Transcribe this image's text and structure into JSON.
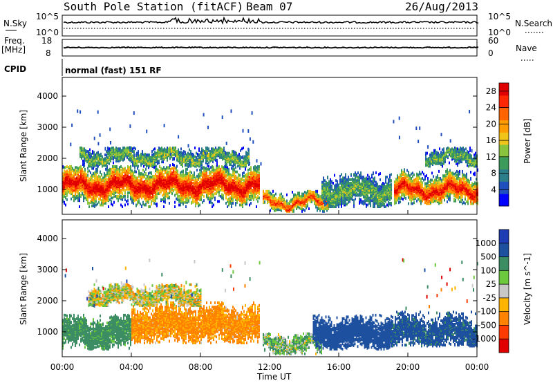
{
  "header": {
    "station": "South Pole Station (fitACF)",
    "beam": "Beam 07",
    "date": "26/Aug/2013"
  },
  "top_panels": {
    "nsky_label": "N.Sky",
    "nsearch_label": "N.Search",
    "noise_ticks": [
      "10^5",
      "10^0"
    ],
    "freq_label": "Freq.",
    "freq_unit": "[MHz]",
    "freq_ticks": [
      "18",
      "8"
    ],
    "nave_label": "Nave",
    "nave_ticks": [
      "60",
      "0"
    ],
    "cpid_label": "CPID",
    "cpid_value": "normal (fast) 151 RF"
  },
  "colors": {
    "power": [
      "#0000ff",
      "#1f4fbf",
      "#2c7d8a",
      "#3c9a5a",
      "#8ac43c",
      "#f0c419",
      "#ff9a00",
      "#ff6400",
      "#ff2800",
      "#e00000"
    ],
    "velocity": [
      "#e00000",
      "#ff3c00",
      "#ff8200",
      "#ffb400",
      "#c8c8c8",
      "#6cc83c",
      "#3c8c64",
      "#1e50a0",
      "#1e3cb4"
    ]
  },
  "chart_data": [
    {
      "type": "heatmap",
      "name": "power",
      "ylabel": "Slant Range [km]",
      "xlabel": "Time UT",
      "x_ticks": [
        "00:00",
        "04:00",
        "08:00",
        "12:00",
        "16:00",
        "20:00",
        "00:00"
      ],
      "x_hours": [
        0,
        4,
        8,
        12,
        16,
        20,
        24
      ],
      "ylim": [
        200,
        4600
      ],
      "y_ticks": [
        1000,
        2000,
        3000,
        4000
      ],
      "colorbar": {
        "label": "Power [dB]",
        "ticks": [
          "4",
          "8",
          "12",
          "16",
          "20",
          "24",
          "28"
        ],
        "range": [
          0,
          30
        ]
      },
      "bands": [
        {
          "t0": 0.0,
          "t1": 11.4,
          "r0": 400,
          "r1": 1700,
          "center": 1100,
          "strength": 0.9
        },
        {
          "t0": 1.0,
          "t1": 10.8,
          "r0": 1700,
          "r1": 2300,
          "center": 2000,
          "strength": 0.35
        },
        {
          "t0": 11.6,
          "t1": 15.4,
          "r0": 250,
          "r1": 900,
          "center": 550,
          "strength": 0.75
        },
        {
          "t0": 15.0,
          "t1": 19.0,
          "r0": 400,
          "r1": 1500,
          "center": 900,
          "strength": 0.3
        },
        {
          "t0": 19.2,
          "t1": 24.0,
          "r0": 500,
          "r1": 1600,
          "center": 950,
          "strength": 0.85
        },
        {
          "t0": 21.0,
          "t1": 24.0,
          "r0": 1700,
          "r1": 2300,
          "center": 2000,
          "strength": 0.3
        }
      ]
    },
    {
      "type": "heatmap",
      "name": "velocity",
      "ylabel": "Slant Range [km]",
      "xlabel": "Time UT",
      "x_ticks": [
        "00:00",
        "04:00",
        "08:00",
        "12:00",
        "16:00",
        "20:00",
        "00:00"
      ],
      "x_hours": [
        0,
        4,
        8,
        12,
        16,
        20,
        24
      ],
      "ylim": [
        200,
        4600
      ],
      "y_ticks": [
        1000,
        2000,
        3000,
        4000
      ],
      "colorbar": {
        "label": "Velocity [m s^-1]",
        "ticks": [
          "1000",
          "500",
          "100",
          "25",
          "-25",
          "-100",
          "-500",
          "-1000"
        ]
      },
      "bands": [
        {
          "t0": 0.0,
          "t1": 4.0,
          "r0": 400,
          "r1": 1500,
          "center": 900,
          "vel": 200
        },
        {
          "t0": 4.0,
          "t1": 11.4,
          "r0": 600,
          "r1": 1900,
          "center": 1200,
          "vel": -150
        },
        {
          "t0": 1.5,
          "t1": 8.0,
          "r0": 1800,
          "r1": 2500,
          "center": 2100,
          "vel": 0
        },
        {
          "t0": 11.6,
          "t1": 15.0,
          "r0": 250,
          "r1": 900,
          "center": 550,
          "vel": 80
        },
        {
          "t0": 14.5,
          "t1": 19.0,
          "r0": 400,
          "r1": 1500,
          "center": 900,
          "vel": 700
        },
        {
          "t0": 19.0,
          "t1": 24.0,
          "r0": 500,
          "r1": 1600,
          "center": 950,
          "vel": 600
        }
      ]
    }
  ]
}
